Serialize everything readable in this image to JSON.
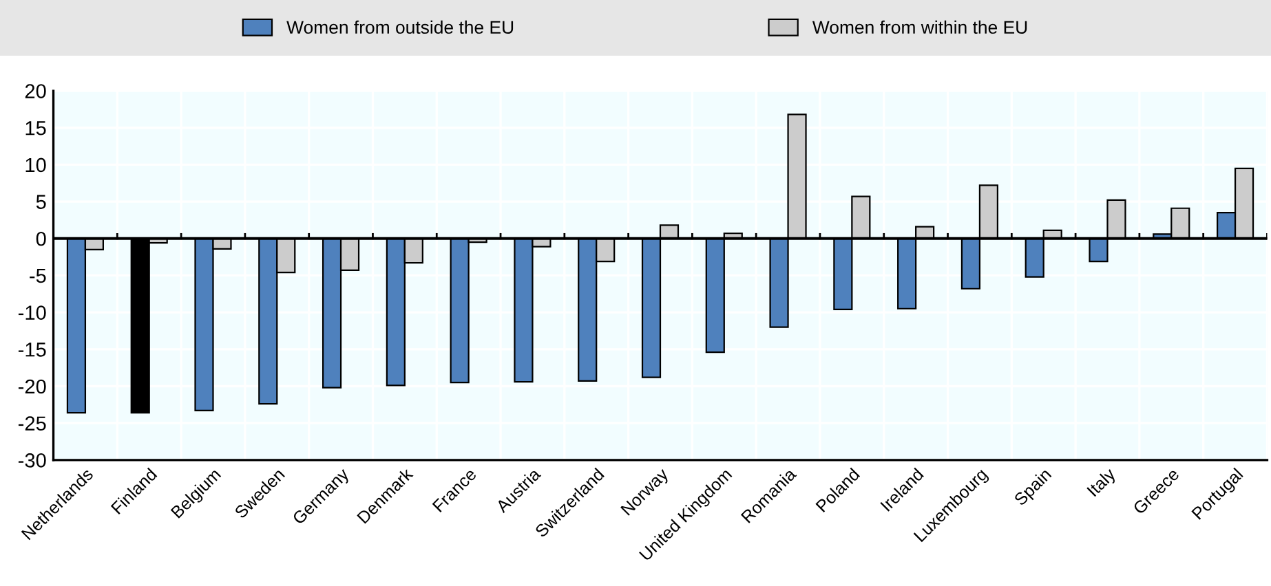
{
  "chart_data": {
    "type": "bar",
    "categories": [
      "Netherlands",
      "Finland",
      "Belgium",
      "Sweden",
      "Germany",
      "Denmark",
      "France",
      "Austria",
      "Switzerland",
      "Norway",
      "United Kingdom",
      "Romania",
      "Poland",
      "Ireland",
      "Luxembourg",
      "Spain",
      "Italy",
      "Greece",
      "Portugal"
    ],
    "series": [
      {
        "name": "Women from outside the EU",
        "color": "#4f81bd",
        "colors": [
          "#4f81bd",
          "#000000",
          "#4f81bd",
          "#4f81bd",
          "#4f81bd",
          "#4f81bd",
          "#4f81bd",
          "#4f81bd",
          "#4f81bd",
          "#4f81bd",
          "#4f81bd",
          "#4f81bd",
          "#4f81bd",
          "#4f81bd",
          "#4f81bd",
          "#4f81bd",
          "#4f81bd",
          "#4f81bd",
          "#4f81bd"
        ],
        "values": [
          -23.6,
          -23.6,
          -23.3,
          -22.4,
          -20.2,
          -19.9,
          -19.5,
          -19.4,
          -19.3,
          -18.8,
          -15.4,
          -12.0,
          -9.6,
          -9.5,
          -6.8,
          -5.2,
          -3.1,
          0.6,
          3.5
        ]
      },
      {
        "name": "Women from within the EU",
        "color": "#cccccc",
        "values": [
          -1.5,
          -0.6,
          -1.4,
          -4.6,
          -4.3,
          -3.3,
          -0.5,
          -1.1,
          -3.1,
          1.8,
          0.7,
          16.8,
          5.7,
          1.6,
          7.2,
          1.1,
          5.2,
          4.1,
          9.5
        ]
      }
    ],
    "ylim": [
      -30,
      20
    ],
    "yticks": [
      -30,
      -25,
      -20,
      -15,
      -10,
      -5,
      0,
      5,
      10,
      15,
      20
    ],
    "grid": true,
    "legend": "top"
  }
}
